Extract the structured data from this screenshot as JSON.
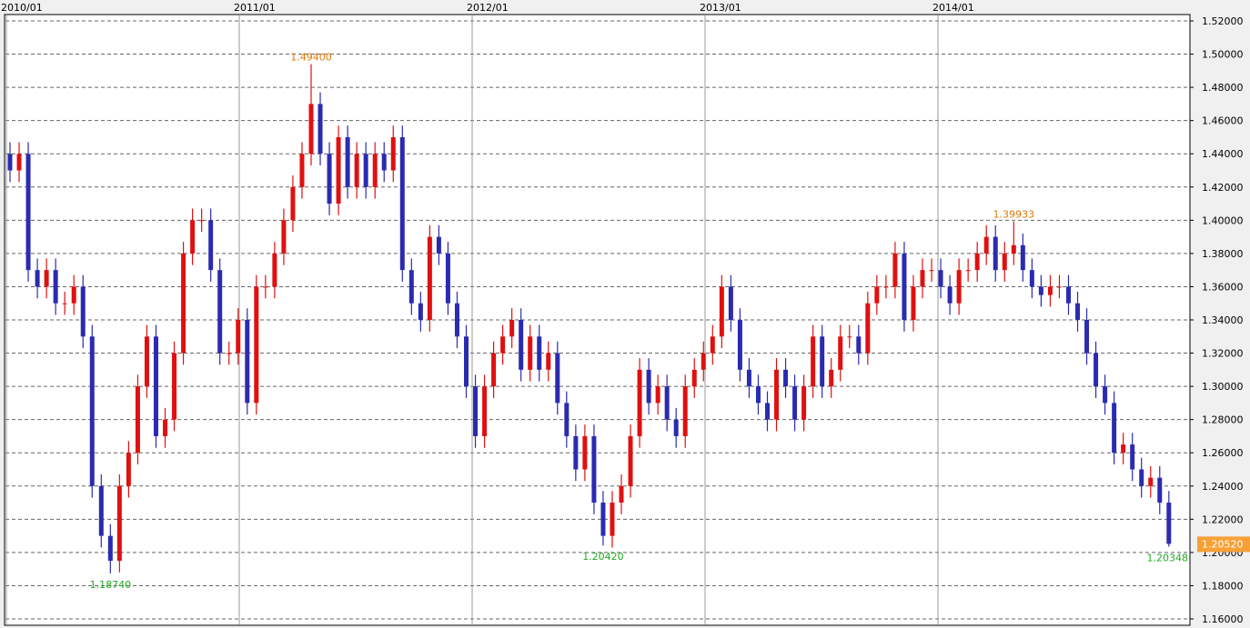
{
  "chart_data": {
    "type": "candlestick",
    "title": "",
    "x_tick_labels": [
      "2010/01",
      "2011/01",
      "2012/01",
      "2013/01",
      "2014/01"
    ],
    "y_tick_labels": [
      "1.52000",
      "1.50000",
      "1.48000",
      "1.46000",
      "1.44000",
      "1.42000",
      "1.40000",
      "1.38000",
      "1.36000",
      "1.34000",
      "1.32000",
      "1.30000",
      "1.28000",
      "1.26000",
      "1.24000",
      "1.22000",
      "1.20000",
      "1.18000",
      "1.16000"
    ],
    "ylim": [
      1.16,
      1.52
    ],
    "grid": {
      "horizontal": "dashed",
      "vertical": "solid at year starts"
    },
    "first_open": 1.44,
    "close": [
      1.43,
      1.44,
      1.37,
      1.36,
      1.37,
      1.35,
      1.35,
      1.36,
      1.33,
      1.24,
      1.21,
      1.195,
      1.24,
      1.26,
      1.3,
      1.33,
      1.27,
      1.28,
      1.32,
      1.38,
      1.4,
      1.4,
      1.37,
      1.32,
      1.32,
      1.34,
      1.29,
      1.36,
      1.36,
      1.38,
      1.4,
      1.42,
      1.44,
      1.47,
      1.44,
      1.41,
      1.45,
      1.42,
      1.44,
      1.42,
      1.44,
      1.43,
      1.45,
      1.37,
      1.35,
      1.34,
      1.39,
      1.38,
      1.35,
      1.33,
      1.3,
      1.27,
      1.3,
      1.32,
      1.33,
      1.34,
      1.31,
      1.33,
      1.31,
      1.32,
      1.29,
      1.27,
      1.25,
      1.27,
      1.23,
      1.21,
      1.23,
      1.24,
      1.27,
      1.31,
      1.29,
      1.3,
      1.28,
      1.27,
      1.3,
      1.31,
      1.32,
      1.33,
      1.36,
      1.34,
      1.31,
      1.3,
      1.29,
      1.28,
      1.31,
      1.3,
      1.28,
      1.3,
      1.33,
      1.3,
      1.31,
      1.33,
      1.33,
      1.32,
      1.35,
      1.36,
      1.36,
      1.38,
      1.34,
      1.36,
      1.37,
      1.37,
      1.36,
      1.35,
      1.37,
      1.37,
      1.38,
      1.39,
      1.37,
      1.38,
      1.385,
      1.37,
      1.36,
      1.355,
      1.36,
      1.36,
      1.35,
      1.34,
      1.32,
      1.3,
      1.29,
      1.26,
      1.265,
      1.25,
      1.24,
      1.245,
      1.23,
      1.2052
    ],
    "annotations": [
      {
        "label": "1.49400",
        "type": "high",
        "value": 1.494,
        "candle": 33
      },
      {
        "label": "1.39933",
        "type": "high",
        "value": 1.39933,
        "candle": 110
      },
      {
        "label": "1.18740",
        "type": "low",
        "value": 1.1874,
        "candle": 11
      },
      {
        "label": "1.20420",
        "type": "low",
        "value": 1.2042,
        "candle": 65
      },
      {
        "label": "1.20348",
        "type": "low",
        "value": 1.20348,
        "candle": 127
      }
    ],
    "last_price": "1.20520",
    "colors": {
      "up": "#e01010",
      "down": "#2b2bb0",
      "high_label": "#e07800",
      "low_label": "#22aa22",
      "last_price_bg": "#f7a035"
    }
  }
}
